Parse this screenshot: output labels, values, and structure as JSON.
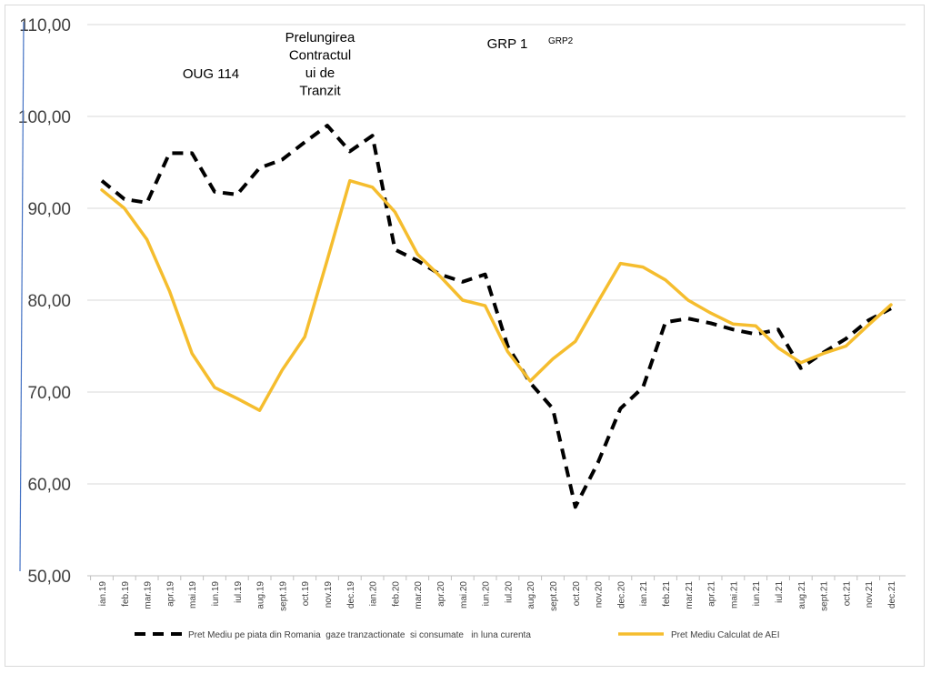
{
  "chart_data": {
    "type": "line",
    "title": "",
    "xlabel": "",
    "ylabel": "",
    "ylim": [
      50,
      110
    ],
    "yticks": [
      "50,00",
      "60,00",
      "70,00",
      "80,00",
      "90,00",
      "100,00",
      "110,00"
    ],
    "grid": "horizontal",
    "legend_position": "bottom",
    "categories": [
      "ian.19",
      "feb.19",
      "mar.19",
      "apr.19",
      "mai.19",
      "iun.19",
      "iul.19",
      "aug.19",
      "sept.19",
      "oct.19",
      "nov.19",
      "dec.19",
      "ian.20",
      "feb.20",
      "mar.20",
      "apr.20",
      "mai.20",
      "iun.20",
      "iul.20",
      "aug.20",
      "sept.20",
      "oct.20",
      "nov.20",
      "dec.20",
      "ian.21",
      "feb.21",
      "mar.21",
      "apr.21",
      "mai.21",
      "iun.21",
      "iul.21",
      "aug.21",
      "sept.21",
      "oct.21",
      "nov.21",
      "dec.21"
    ],
    "series": [
      {
        "name": "Pret Mediu pe piata din Romania  gaze tranzactionate  si consumate   in luna curenta",
        "color": "#000000",
        "style": "dashed",
        "values": [
          93.0,
          91.0,
          90.6,
          96.0,
          96.0,
          91.8,
          91.5,
          94.4,
          95.3,
          97.2,
          99.0,
          96.2,
          97.9,
          85.5,
          84.3,
          82.8,
          82.0,
          82.8,
          75.0,
          71.0,
          68.2,
          57.5,
          62.3,
          68.2,
          70.5,
          77.6,
          78.0,
          77.5,
          76.8,
          76.3,
          76.8,
          72.6,
          74.3,
          75.8,
          77.8,
          79.1
        ]
      },
      {
        "name": "Pret Mediu Calculat de AEI",
        "color": "#F5BD2E",
        "style": "solid",
        "values": [
          92.0,
          90.0,
          86.6,
          81.0,
          74.2,
          70.5,
          69.3,
          68.0,
          72.4,
          76.0,
          84.4,
          93.0,
          92.3,
          89.6,
          85.0,
          82.6,
          80.0,
          79.4,
          74.4,
          71.2,
          73.6,
          75.5,
          79.8,
          84.0,
          83.6,
          82.2,
          80.0,
          78.6,
          77.4,
          77.2,
          74.8,
          73.2,
          74.2,
          75.0,
          77.3,
          79.5
        ]
      }
    ],
    "annotations": [
      {
        "lines": [
          "OUG 114"
        ],
        "size": "normal"
      },
      {
        "lines": [
          "Prelungirea",
          "Contractul",
          "ui de",
          "Tranzit"
        ],
        "size": "normal"
      },
      {
        "lines": [
          "GRP 1"
        ],
        "size": "normal"
      },
      {
        "lines": [
          "GRP2"
        ],
        "size": "small"
      }
    ]
  }
}
